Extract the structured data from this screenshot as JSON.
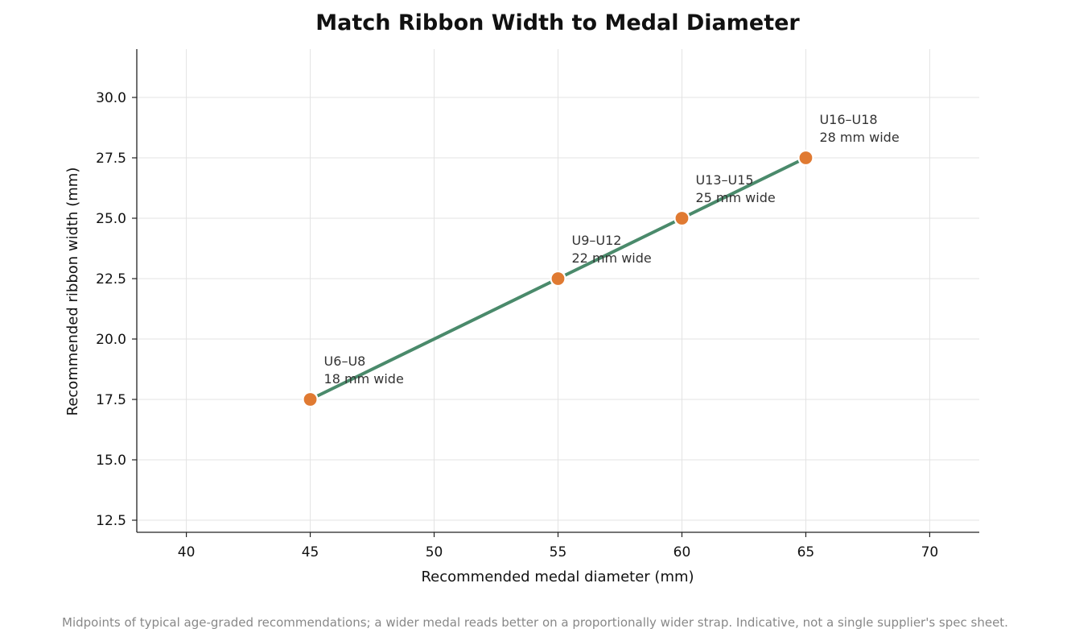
{
  "chart_data": {
    "type": "line",
    "title": "Match Ribbon Width to Medal Diameter",
    "xlabel": "Recommended medal diameter (mm)",
    "ylabel": "Recommended ribbon width (mm)",
    "xlim": [
      38,
      72
    ],
    "ylim": [
      12,
      32
    ],
    "xticks": [
      40,
      45,
      50,
      55,
      60,
      65,
      70
    ],
    "xtick_labels": [
      "40",
      "45",
      "50",
      "55",
      "60",
      "65",
      "70"
    ],
    "yticks": [
      12.5,
      15.0,
      17.5,
      20.0,
      22.5,
      25.0,
      27.5,
      30.0
    ],
    "ytick_labels": [
      "12.5",
      "15.0",
      "17.5",
      "20.0",
      "22.5",
      "25.0",
      "27.5",
      "30.0"
    ],
    "grid": true,
    "series": [
      {
        "x": [
          45,
          55,
          60,
          65
        ],
        "y": [
          17.5,
          22.5,
          25.0,
          27.5
        ],
        "labels": [
          [
            "U6–U8",
            "18 mm wide"
          ],
          [
            "U9–U12",
            "22 mm wide"
          ],
          [
            "U13–U15",
            "25 mm wide"
          ],
          [
            "U16–U18",
            "28 mm wide"
          ]
        ]
      }
    ],
    "footnote": "Midpoints of typical age-graded recommendations; a wider medal reads better on a proportionally wider strap. Indicative, not a single supplier's spec sheet."
  },
  "colors": {
    "line": "#4a8a6b",
    "marker": "#e07a32",
    "marker_edge": "#ffffff",
    "grid": "#e3e3e3",
    "axis": "#222222"
  }
}
